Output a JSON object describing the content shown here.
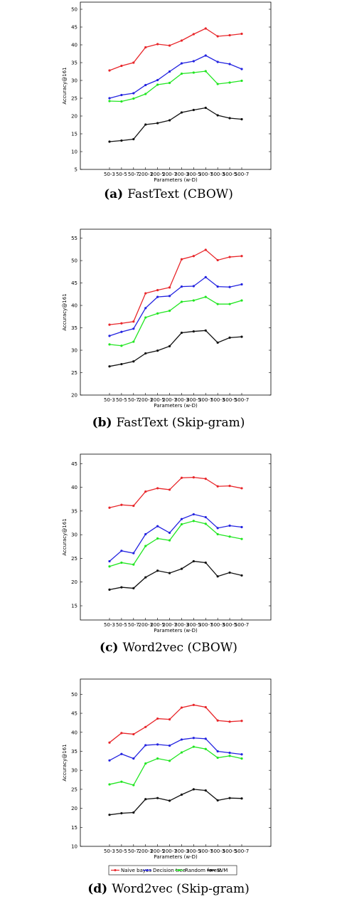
{
  "chart_data": [
    {
      "type": "line",
      "tag": "(a)",
      "caption": "FastText (CBOW)",
      "xlabel": "Parameters (w-D)",
      "ylabel": "Accuracy@161",
      "ylim": [
        5,
        52
      ],
      "yticks": [
        5,
        10,
        15,
        20,
        25,
        30,
        35,
        40,
        45,
        50
      ],
      "categories": [
        "50-3",
        "50-5",
        "50-7",
        "200-3",
        "200-5",
        "200-7",
        "300-3",
        "300-5",
        "300-7",
        "500-3",
        "500-5",
        "500-7"
      ],
      "series": [
        {
          "color": "#e8262a",
          "values": [
            32.8,
            34.1,
            35.0,
            39.3,
            40.2,
            39.8,
            41.2,
            43.0,
            44.6,
            42.4,
            42.7,
            43.1
          ]
        },
        {
          "color": "#2323e0",
          "values": [
            25.0,
            25.9,
            26.4,
            28.7,
            30.1,
            32.5,
            34.8,
            35.4,
            37.0,
            35.2,
            34.6,
            33.2
          ]
        },
        {
          "color": "#22e622",
          "values": [
            24.2,
            24.1,
            24.9,
            26.2,
            28.8,
            29.3,
            31.9,
            32.2,
            32.6,
            29.0,
            29.4,
            29.9
          ]
        },
        {
          "color": "#111111",
          "values": [
            12.8,
            13.1,
            13.5,
            17.6,
            18.0,
            18.8,
            21.0,
            21.7,
            22.3,
            20.2,
            19.4,
            19.1
          ]
        }
      ]
    },
    {
      "type": "line",
      "tag": "(b)",
      "caption": "FastText (Skip-gram)",
      "xlabel": "Parameters (w-D)",
      "ylabel": "Accuracy@161",
      "ylim": [
        20,
        57
      ],
      "yticks": [
        20,
        25,
        30,
        35,
        40,
        45,
        50,
        55
      ],
      "categories": [
        "50-3",
        "50-5",
        "50-7",
        "200-3",
        "200-5",
        "200-7",
        "300-3",
        "300-5",
        "300-7",
        "500-3",
        "500-5",
        "500-7"
      ],
      "series": [
        {
          "color": "#e8262a",
          "values": [
            35.7,
            36.0,
            36.4,
            42.7,
            43.4,
            44.0,
            50.3,
            51.0,
            52.4,
            50.1,
            50.8,
            51.0
          ]
        },
        {
          "color": "#2323e0",
          "values": [
            33.2,
            34.1,
            34.8,
            39.4,
            41.9,
            42.1,
            44.2,
            44.3,
            46.3,
            44.2,
            44.1,
            44.7
          ]
        },
        {
          "color": "#22e622",
          "values": [
            31.3,
            31.0,
            31.9,
            37.3,
            38.2,
            38.8,
            40.8,
            41.1,
            41.9,
            40.3,
            40.3,
            41.1
          ]
        },
        {
          "color": "#111111",
          "values": [
            26.4,
            26.9,
            27.5,
            29.3,
            29.9,
            30.9,
            33.9,
            34.2,
            34.4,
            31.7,
            32.8,
            33.0
          ]
        }
      ]
    },
    {
      "type": "line",
      "tag": "(c)",
      "caption": "Word2vec (CBOW)",
      "xlabel": "Parameters (w-D)",
      "ylabel": "Accuracy@161",
      "ylim": [
        12,
        47
      ],
      "yticks": [
        15,
        20,
        25,
        30,
        35,
        40,
        45
      ],
      "categories": [
        "50-3",
        "50-5",
        "50-7",
        "200-3",
        "200-5",
        "200-7",
        "300-3",
        "300-5",
        "300-7",
        "500-3",
        "500-5",
        "500-7"
      ],
      "series": [
        {
          "color": "#e8262a",
          "values": [
            35.7,
            36.3,
            36.1,
            39.1,
            39.8,
            39.5,
            42.0,
            42.1,
            41.8,
            40.2,
            40.3,
            39.8
          ]
        },
        {
          "color": "#2323e0",
          "values": [
            24.4,
            26.6,
            26.1,
            30.1,
            31.8,
            30.4,
            33.3,
            34.3,
            33.7,
            31.4,
            31.9,
            31.6
          ]
        },
        {
          "color": "#22e622",
          "values": [
            23.3,
            24.1,
            23.7,
            27.6,
            29.2,
            28.8,
            32.2,
            32.9,
            32.3,
            30.1,
            29.6,
            29.1
          ]
        },
        {
          "color": "#111111",
          "values": [
            18.4,
            18.9,
            18.7,
            21.0,
            22.4,
            21.9,
            22.8,
            24.4,
            24.1,
            21.2,
            22.0,
            21.4
          ]
        }
      ]
    },
    {
      "type": "line",
      "tag": "(d)",
      "caption": "Word2vec (Skip-gram)",
      "xlabel": "Parameters (w-D)",
      "ylabel": "Accuracy@161",
      "ylim": [
        10,
        54
      ],
      "yticks": [
        10,
        15,
        20,
        25,
        30,
        35,
        40,
        45,
        50
      ],
      "categories": [
        "50-3",
        "50-5",
        "50-7",
        "200-3",
        "200-5",
        "200-7",
        "300-3",
        "300-5",
        "300-7",
        "500-3",
        "500-5",
        "500-7"
      ],
      "legend": [
        "Naive bayes",
        "Decision tree",
        "Random forest",
        "SVM"
      ],
      "legend_position": "bottom",
      "series": [
        {
          "name": "Naive bayes",
          "color": "#e8262a",
          "values": [
            37.3,
            39.8,
            39.5,
            41.4,
            43.6,
            43.4,
            46.5,
            47.2,
            46.6,
            43.1,
            42.8,
            43.0
          ]
        },
        {
          "name": "Decision tree",
          "color": "#2323e0",
          "values": [
            32.6,
            34.3,
            33.1,
            36.6,
            36.8,
            36.5,
            38.1,
            38.5,
            38.3,
            35.0,
            34.6,
            34.2
          ]
        },
        {
          "name": "Random forest",
          "color": "#22e622",
          "values": [
            26.3,
            27.0,
            26.1,
            31.8,
            33.1,
            32.5,
            34.7,
            36.2,
            35.6,
            33.3,
            33.8,
            33.1
          ]
        },
        {
          "name": "SVM",
          "color": "#111111",
          "values": [
            18.3,
            18.7,
            18.9,
            22.4,
            22.7,
            22.0,
            23.6,
            25.0,
            24.7,
            22.1,
            22.7,
            22.6
          ]
        }
      ]
    }
  ]
}
